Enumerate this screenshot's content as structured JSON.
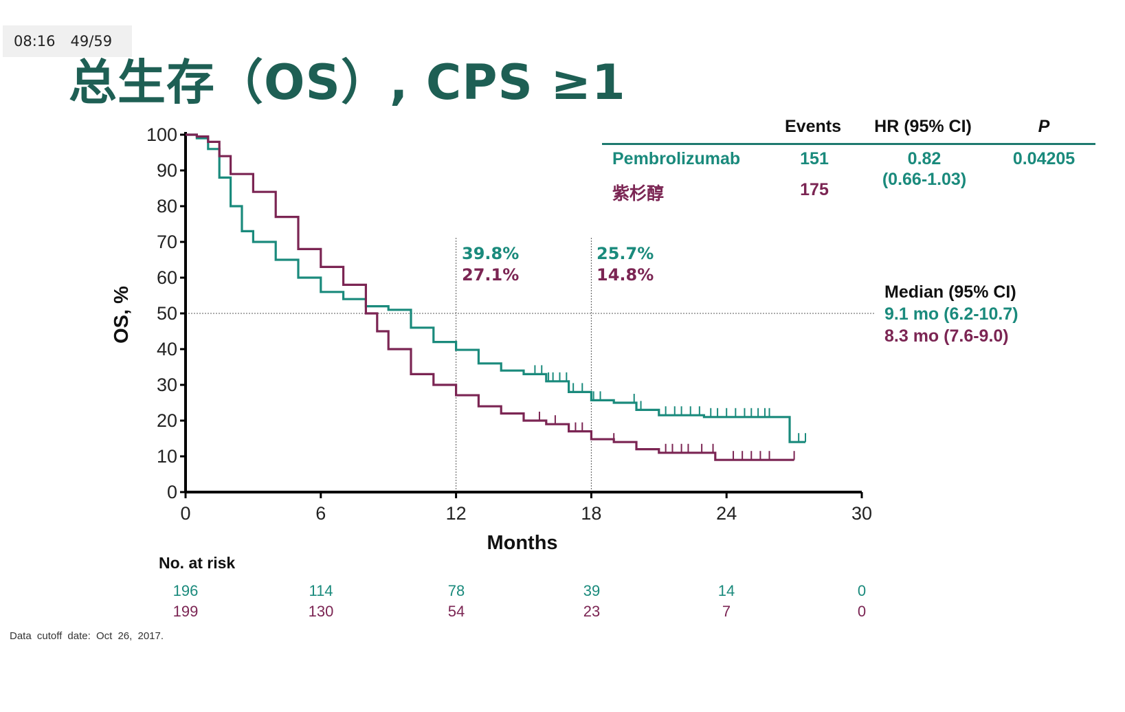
{
  "window": {
    "time": "08:16",
    "page": "49/59"
  },
  "title": "总生存（OS）, CPS ≥1",
  "table": {
    "headers": {
      "events": "Events",
      "hr": "HR (95% CI)",
      "p": "P"
    },
    "rows": [
      {
        "name": "Pembrolizumab",
        "events": "151",
        "color": "#1a8a7c"
      },
      {
        "name": "紫杉醇",
        "events": "175",
        "color": "#7b2553"
      }
    ],
    "hr_value": "0.82",
    "hr_ci": "(0.66-1.03)",
    "p_value": "0.04205"
  },
  "median": {
    "title": "Median (95% CI)",
    "pembro": "9.1 mo (6.2-10.7)",
    "pacli": "8.3 mo (7.6-9.0)"
  },
  "annotations": {
    "m12": {
      "pembro": "39.8%",
      "pacli": "27.1%"
    },
    "m18": {
      "pembro": "25.7%",
      "pacli": "14.8%"
    }
  },
  "risk": {
    "title": "No. at risk",
    "pembro": [
      "196",
      "114",
      "78",
      "39",
      "14",
      "0"
    ],
    "pacli": [
      "199",
      "130",
      "54",
      "23",
      "7",
      "0"
    ]
  },
  "footnote": "Data cutoff date: Oct 26, 2017.",
  "chart_data": {
    "type": "line",
    "xlabel": "Months",
    "ylabel": "OS, %",
    "xlim": [
      0,
      30
    ],
    "ylim": [
      0,
      100
    ],
    "xticks": [
      0,
      6,
      12,
      18,
      24,
      30
    ],
    "yticks": [
      0,
      10,
      20,
      30,
      40,
      50,
      60,
      70,
      80,
      90,
      100
    ],
    "reference_line_y": 50,
    "landmark_x": [
      12,
      18
    ],
    "series": [
      {
        "name": "Pembrolizumab",
        "color": "#1a8a7c",
        "x": [
          0,
          0.5,
          1.0,
          1.5,
          2.0,
          2.5,
          3.0,
          4.0,
          5.0,
          6.0,
          7.0,
          8.0,
          9.0,
          10.0,
          11.0,
          12.0,
          13.0,
          14.0,
          15.0,
          16.0,
          17.0,
          18.0,
          19.0,
          20.0,
          21.0,
          22.0,
          23.0,
          24.0,
          25.0,
          26.0,
          26.8,
          26.8,
          27.5
        ],
        "y": [
          100,
          99,
          96,
          88,
          80,
          73,
          70,
          65,
          60,
          56,
          54,
          52,
          51,
          46,
          42,
          39.8,
          36,
          34,
          33,
          31,
          28,
          25.7,
          25,
          23,
          21.5,
          21.5,
          21,
          21,
          21,
          21,
          21,
          14,
          14
        ],
        "censor_x": [
          15.5,
          15.8,
          16.1,
          16.3,
          16.6,
          16.9,
          17.2,
          17.6,
          18.1,
          18.4,
          19.9,
          20.2,
          21.3,
          21.7,
          22.0,
          22.4,
          22.8,
          23.3,
          23.6,
          24.0,
          24.4,
          24.8,
          25.1,
          25.4,
          25.7,
          25.9,
          27.2,
          27.5
        ]
      },
      {
        "name": "紫杉醇",
        "color": "#7b2553",
        "x": [
          0,
          0.5,
          1.0,
          1.5,
          2.0,
          3.0,
          4.0,
          5.0,
          6.0,
          7.0,
          8.0,
          8.5,
          9.0,
          10.0,
          11.0,
          12.0,
          13.0,
          14.0,
          15.0,
          16.0,
          17.0,
          18.0,
          19.0,
          20.0,
          21.0,
          22.0,
          23.0,
          23.5,
          23.5,
          24.0,
          25.0,
          26.0,
          27.0
        ],
        "y": [
          100,
          99.5,
          98,
          94,
          89,
          84,
          77,
          68,
          63,
          58,
          50,
          45,
          40,
          33,
          30,
          27.1,
          24,
          22,
          20,
          19,
          17,
          14.8,
          14,
          12,
          11,
          11,
          11,
          11,
          9,
          9,
          9,
          9,
          9
        ],
        "censor_x": [
          15.7,
          16.4,
          17.3,
          17.6,
          19.0,
          21.3,
          21.6,
          22.0,
          22.3,
          22.9,
          23.4,
          24.3,
          24.7,
          25.1,
          25.5,
          25.9,
          27.0
        ]
      }
    ]
  }
}
